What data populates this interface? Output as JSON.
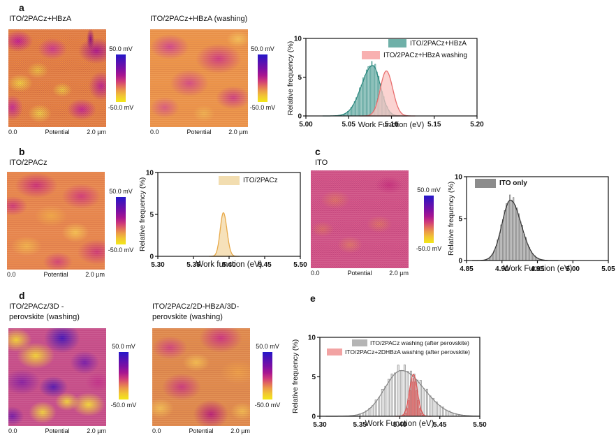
{
  "figure": {
    "panels": {
      "a": {
        "label": "a"
      },
      "b": {
        "label": "b"
      },
      "c": {
        "label": "c"
      },
      "d": {
        "label": "d"
      },
      "e": {
        "label": "e"
      }
    },
    "images": {
      "a1": {
        "title": "ITO/2PACz+HBzA"
      },
      "a2": {
        "title": "ITO/2PACz+HBzA (washing)"
      },
      "b1": {
        "title": "ITO/2PACz"
      },
      "c1": {
        "title": "ITO"
      },
      "d1": {
        "title_line1": "ITO/2PACz/3D -",
        "title_line2": "perovskite (washing)"
      },
      "d2": {
        "title_line1": "ITO/2PACz/2D-HBzA/3D-",
        "title_line2": "perovskite (washing)"
      }
    },
    "colorbar": {
      "top": "50.0 mV",
      "bottom": "-50.0 mV"
    },
    "image_axis": {
      "left": "0.0",
      "center": "Potential",
      "right": "2.0 µm"
    }
  },
  "chart_data": [
    {
      "id": "a",
      "type": "histogram",
      "xlabel": "Work Function (eV)",
      "ylabel": "Relative frequency (%)",
      "xlim": [
        5.0,
        5.2
      ],
      "xticks": [
        "5.00",
        "5.05",
        "5.10",
        "5.15",
        "5.20"
      ],
      "ylim": [
        0,
        10
      ],
      "yticks": [
        "0",
        "5",
        "10"
      ],
      "series": [
        {
          "name": "ITO/2PACz+HBzA",
          "style": "bars",
          "mean": 5.078,
          "sigma_left": 0.013,
          "sigma_right": 0.009,
          "peak_pct": 6.8,
          "bin_eV": 0.002,
          "bar_frac": 0.55,
          "jitter": 0.04,
          "color": "#3f948b",
          "fill": "rgba(95,166,159,0.28)"
        },
        {
          "style": "curve",
          "mean": 5.078,
          "sigma_left": 0.013,
          "sigma_right": 0.009,
          "peak_pct": 6.5,
          "color": "#2f8a81"
        },
        {
          "name": "ITO/2PACz+HBzA washing",
          "style": "area",
          "mean": 5.094,
          "sigma_left": 0.007,
          "sigma_right": 0.0075,
          "peak_pct": 5.8,
          "color": "#e96e6e",
          "fill": "rgba(249,196,194,0.75)"
        }
      ],
      "legend": [
        {
          "label": "ITO/2PACz+HBzA",
          "color": "#6fb0a8"
        },
        {
          "label": "ITO/2PACz+HBzA washing",
          "color": "#f8b0b0"
        }
      ],
      "legend_position": "top-right"
    },
    {
      "id": "b",
      "type": "histogram",
      "xlabel": "Work function (eV)",
      "ylabel": "Relative frequency (%)",
      "xlim": [
        5.3,
        5.5
      ],
      "xticks": [
        "5.30",
        "5.35",
        "5.40",
        "5.45",
        "5.50"
      ],
      "ylim": [
        0,
        10
      ],
      "yticks": [
        "0",
        "5",
        "10"
      ],
      "series": [
        {
          "name": "ITO/2PACz",
          "style": "area",
          "mean": 5.392,
          "sigma_left": 0.0045,
          "sigma_right": 0.005,
          "peak_pct": 5.2,
          "color": "#e8a948",
          "fill": "rgba(245,222,179,0.9)"
        }
      ],
      "legend": [
        {
          "label": "ITO/2PACz",
          "color": "#f2ddb0"
        }
      ],
      "legend_position": "top-right"
    },
    {
      "id": "c",
      "type": "histogram",
      "xlabel": "Work Function (eV)",
      "ylabel": "Relative frequency (%)",
      "xlim": [
        4.85,
        5.05
      ],
      "xticks": [
        "4.85",
        "4.90",
        "4.95",
        "5.00",
        "5.05"
      ],
      "ylim": [
        0,
        10
      ],
      "yticks": [
        "0",
        "5",
        "10"
      ],
      "series": [
        {
          "name": "ITO only",
          "style": "bars",
          "mean": 4.912,
          "sigma_left": 0.012,
          "sigma_right": 0.015,
          "peak_pct": 7.5,
          "bin_eV": 0.0025,
          "bar_frac": 0.5,
          "jitter": 0.05,
          "color": "#6f6f6f",
          "fill": "rgba(218,218,218,0.35)"
        },
        {
          "style": "curve",
          "mean": 4.912,
          "sigma_left": 0.012,
          "sigma_right": 0.015,
          "peak_pct": 7.2,
          "color": "#3a3a3a"
        }
      ],
      "legend": [
        {
          "label": "ITO only",
          "color": "#8c8c8c"
        }
      ],
      "legend_position": "top-left"
    },
    {
      "id": "e",
      "type": "histogram",
      "xlabel": "Work Function (eV)",
      "ylabel": "Relative frequency (%)",
      "xlim": [
        5.3,
        5.5
      ],
      "xticks": [
        "5.30",
        "5.35",
        "5.40",
        "5.45",
        "5.50"
      ],
      "ylim": [
        0,
        10
      ],
      "yticks": [
        "0",
        "5",
        "10"
      ],
      "series": [
        {
          "name": "ITO/2PACz washing (after perovskite)",
          "style": "bars",
          "mean": 5.402,
          "sigma_left": 0.021,
          "sigma_right": 0.028,
          "peak_pct": 6.2,
          "bin_eV": 0.004,
          "bar_frac": 0.48,
          "jitter": 0.07,
          "color": "#8f8f8f",
          "fill": "rgba(205,205,205,0.55)"
        },
        {
          "style": "curve",
          "mean": 5.402,
          "sigma_left": 0.021,
          "sigma_right": 0.028,
          "peak_pct": 5.8,
          "color": "#8a8a8a"
        },
        {
          "name": "ITO/2PACz+2DHBzA washing (after perovskite)",
          "style": "bars",
          "mean": 5.417,
          "sigma_left": 0.0045,
          "sigma_right": 0.0045,
          "peak_pct": 4.8,
          "bin_eV": 0.002,
          "bar_frac": 0.9,
          "jitter": 0.0,
          "color": "rgba(210,80,80,0.9)",
          "fill": "rgba(233,110,110,0.55)"
        },
        {
          "style": "curve",
          "mean": 5.417,
          "sigma_left": 0.005,
          "sigma_right": 0.005,
          "peak_pct": 5.3,
          "color": "#e05a5a"
        }
      ],
      "legend": [
        {
          "label": "ITO/2PACz washing (after perovskite)",
          "color": "#b5b5b5"
        },
        {
          "label": "ITO/2PACz+2DHBzA washing (after perovskite)",
          "color": "#f2a3a3"
        }
      ],
      "legend_position": "top-right"
    }
  ]
}
